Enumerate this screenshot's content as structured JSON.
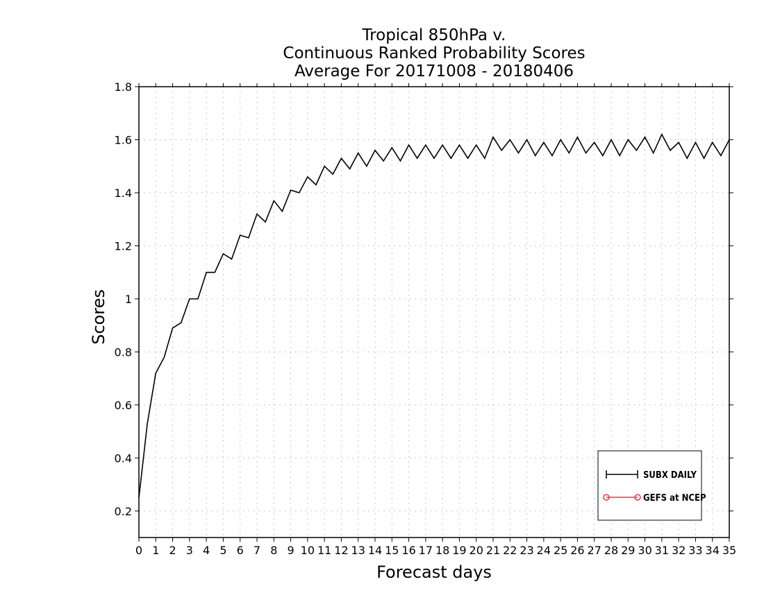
{
  "chart_data": {
    "type": "line",
    "title_lines": [
      "Tropical 850hPa v.",
      "Continuous Ranked Probability Scores",
      "Average For 20171008 - 20180406"
    ],
    "xlabel": "Forecast days",
    "ylabel": "Scores",
    "xlim": [
      0,
      35
    ],
    "ylim": [
      0.1,
      1.8
    ],
    "x_ticks": [
      0,
      1,
      2,
      3,
      4,
      5,
      6,
      7,
      8,
      9,
      10,
      11,
      12,
      13,
      14,
      15,
      16,
      17,
      18,
      19,
      20,
      21,
      22,
      23,
      24,
      25,
      26,
      27,
      28,
      29,
      30,
      31,
      32,
      33,
      34,
      35
    ],
    "y_ticks": [
      0.2,
      0.4,
      0.6,
      0.8,
      1,
      1.2,
      1.4,
      1.6,
      1.8
    ],
    "y_tick_labels": [
      "0.2",
      "0.4",
      "0.6",
      "0.8",
      "1",
      "1.2",
      "1.4",
      "1.6",
      "1.8"
    ],
    "grid": true,
    "legend": {
      "placement": "bottom-right"
    },
    "series": [
      {
        "name": "SUBX DAILY",
        "color": "#000000",
        "marker": "plus",
        "x": [
          0,
          0.5,
          1,
          1.5,
          2,
          2.5,
          3,
          3.5,
          4,
          4.5,
          5,
          5.5,
          6,
          6.5,
          7,
          7.5,
          8,
          8.5,
          9,
          9.5,
          10,
          10.5,
          11,
          11.5,
          12,
          12.5,
          13,
          13.5,
          14,
          14.5,
          15,
          15.5,
          16,
          16.5,
          17,
          17.5,
          18,
          18.5,
          19,
          19.5,
          20,
          20.5,
          21,
          21.5,
          22,
          22.5,
          23,
          23.5,
          24,
          24.5,
          25,
          25.5,
          26,
          26.5,
          27,
          27.5,
          28,
          28.5,
          29,
          29.5,
          30,
          30.5,
          31,
          31.5,
          32,
          32.5,
          33,
          33.5,
          34,
          34.5,
          35
        ],
        "values": [
          0.25,
          0.53,
          0.72,
          0.78,
          0.89,
          0.91,
          1.0,
          1.0,
          1.1,
          1.1,
          1.17,
          1.15,
          1.24,
          1.23,
          1.32,
          1.29,
          1.37,
          1.33,
          1.41,
          1.4,
          1.46,
          1.43,
          1.5,
          1.47,
          1.53,
          1.49,
          1.55,
          1.5,
          1.56,
          1.52,
          1.57,
          1.52,
          1.58,
          1.53,
          1.58,
          1.53,
          1.58,
          1.53,
          1.58,
          1.53,
          1.58,
          1.53,
          1.61,
          1.56,
          1.6,
          1.55,
          1.6,
          1.54,
          1.59,
          1.54,
          1.6,
          1.55,
          1.61,
          1.55,
          1.59,
          1.54,
          1.6,
          1.54,
          1.6,
          1.56,
          1.61,
          1.55,
          1.62,
          1.56,
          1.59,
          1.53,
          1.59,
          1.53,
          1.59,
          1.54,
          1.6
        ]
      },
      {
        "name": "GEFS at NCEP",
        "color": "#ff3333",
        "marker": "circle",
        "x": [],
        "values": []
      }
    ]
  }
}
